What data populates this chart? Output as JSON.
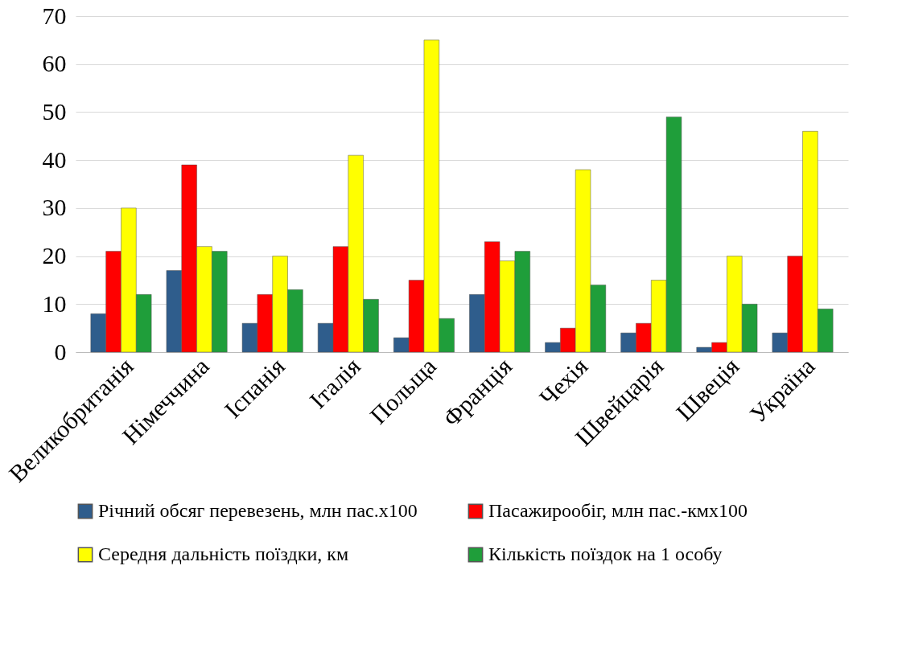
{
  "chart_data": {
    "type": "bar",
    "categories": [
      "Великобританія",
      "Німеччина",
      "Іспанія",
      "Італія",
      "Польща",
      "Франція",
      "Чехія",
      "Швейцарія",
      "Швеція",
      "Україна"
    ],
    "series": [
      {
        "name": "Річний обсяг перевезень, млн пас.x100",
        "color": "#2f5d8c",
        "values": [
          8,
          17,
          6,
          6,
          3,
          12,
          2,
          4,
          1,
          4
        ]
      },
      {
        "name": "Пасажирообіг, млн пас.-кмx100",
        "color": "#ff0000",
        "values": [
          21,
          39,
          12,
          22,
          15,
          23,
          5,
          6,
          2,
          20
        ]
      },
      {
        "name": "Середня дальність поїздки, км",
        "color": "#ffff00",
        "values": [
          30,
          22,
          20,
          41,
          65,
          19,
          38,
          15,
          20,
          46
        ]
      },
      {
        "name": "Кількість поїздок на 1 особу",
        "color": "#1f9e3a",
        "values": [
          12,
          21,
          13,
          11,
          7,
          21,
          14,
          49,
          10,
          9
        ]
      }
    ],
    "ylim": [
      0,
      70
    ],
    "yticks": [
      0,
      10,
      20,
      30,
      40,
      50,
      60,
      70
    ],
    "grid": "y",
    "legend": "bottom"
  }
}
